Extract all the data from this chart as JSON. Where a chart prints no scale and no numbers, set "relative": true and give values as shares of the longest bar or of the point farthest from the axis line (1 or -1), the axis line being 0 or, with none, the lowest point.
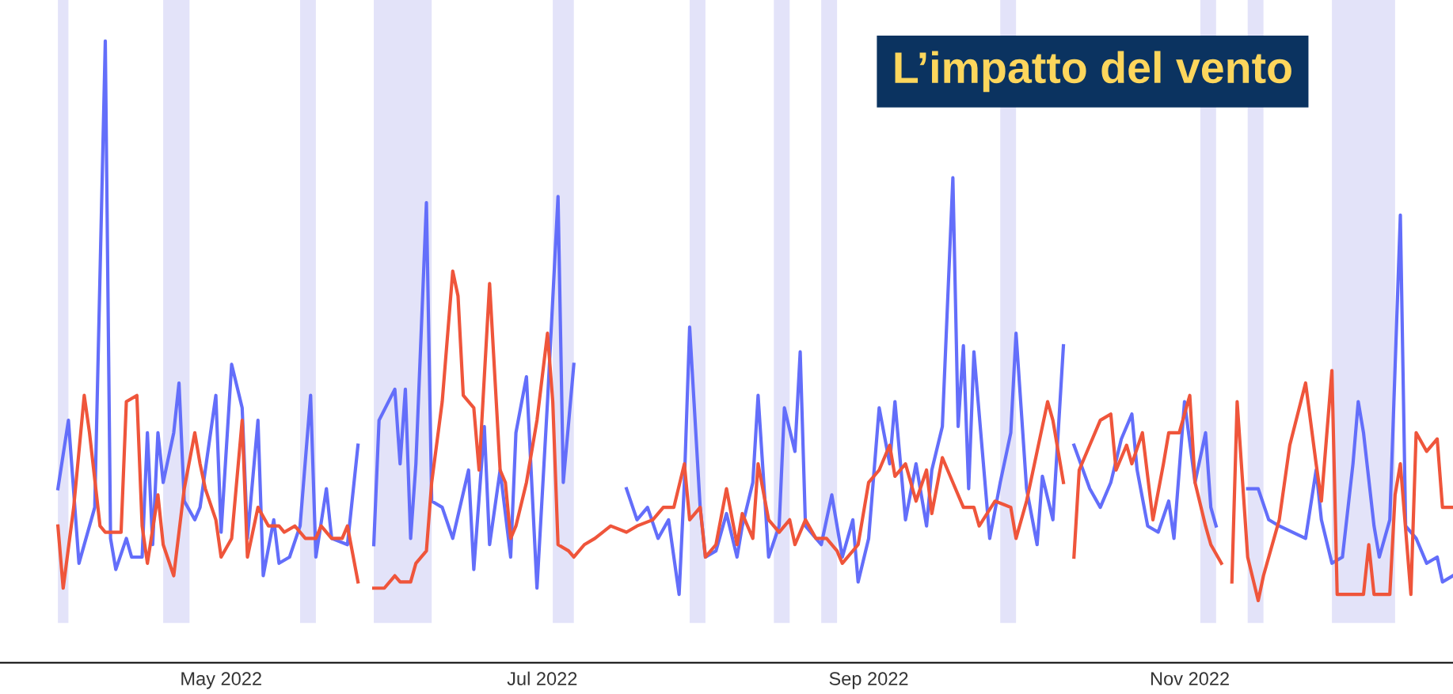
{
  "chart_data": {
    "type": "line",
    "title": "L’impatto del vento",
    "relative": true,
    "grid": false,
    "legend": false,
    "marker": "none",
    "line_style": "solid",
    "xlim": [
      "2022-03-20",
      "2022-12-21"
    ],
    "xticks": [
      {
        "value": "2022-05-01",
        "label": "May 2022"
      },
      {
        "value": "2022-07-01",
        "label": "Jul 2022"
      },
      {
        "value": "2022-09-01",
        "label": "Sep 2022"
      },
      {
        "value": "2022-11-01",
        "label": "Nov 2022"
      }
    ],
    "bands": [
      {
        "axis": "x",
        "from": "2022-03-31",
        "to": "2022-04-02",
        "color": "#e3e3f9"
      },
      {
        "axis": "x",
        "from": "2022-04-20",
        "to": "2022-04-25",
        "color": "#e3e3f9"
      },
      {
        "axis": "x",
        "from": "2022-05-16",
        "to": "2022-05-19",
        "color": "#e3e3f9"
      },
      {
        "axis": "x",
        "from": "2022-05-30",
        "to": "2022-06-10",
        "color": "#e3e3f9"
      },
      {
        "axis": "x",
        "from": "2022-07-03",
        "to": "2022-07-07",
        "color": "#e3e3f9"
      },
      {
        "axis": "x",
        "from": "2022-07-29",
        "to": "2022-08-01",
        "color": "#e3e3f9"
      },
      {
        "axis": "x",
        "from": "2022-08-14",
        "to": "2022-08-17",
        "color": "#e3e3f9"
      },
      {
        "axis": "x",
        "from": "2022-08-23",
        "to": "2022-08-26",
        "color": "#e3e3f9"
      },
      {
        "axis": "x",
        "from": "2022-09-26",
        "to": "2022-09-29",
        "color": "#e3e3f9"
      },
      {
        "axis": "x",
        "from": "2022-11-03",
        "to": "2022-11-06",
        "color": "#e3e3f9"
      },
      {
        "axis": "x",
        "from": "2022-11-12",
        "to": "2022-11-15",
        "color": "#e3e3f9"
      },
      {
        "axis": "x",
        "from": "2022-11-28",
        "to": "2022-12-10",
        "color": "#e3e3f9"
      }
    ],
    "series": [
      {
        "color": "#636efa",
        "x": [
          "2022-03-31",
          "2022-04-02",
          "2022-04-04",
          "2022-04-07",
          "2022-04-09",
          "2022-04-10",
          "2022-04-11",
          "2022-04-13",
          "2022-04-14",
          "2022-04-16",
          "2022-04-17",
          "2022-04-18",
          "2022-04-19",
          "2022-04-20",
          "2022-04-22",
          "2022-04-23",
          "2022-04-24",
          "2022-04-26",
          "2022-04-27",
          "2022-04-30",
          "2022-05-01",
          "2022-05-03",
          "2022-05-05",
          "2022-05-06",
          "2022-05-08",
          "2022-05-09",
          "2022-05-11",
          "2022-05-12",
          "2022-05-14",
          "2022-05-16",
          "2022-05-18",
          "2022-05-19",
          "2022-05-21",
          "2022-05-22",
          "2022-05-25",
          "2022-05-27",
          "2022-05-28",
          "2022-05-30",
          "2022-05-31",
          "2022-06-03",
          "2022-06-04",
          "2022-06-05",
          "2022-06-06",
          "2022-06-07",
          "2022-06-09",
          "2022-06-10",
          "2022-06-12",
          "2022-06-14",
          "2022-06-17",
          "2022-06-18",
          "2022-06-20",
          "2022-06-21",
          "2022-06-23",
          "2022-06-25",
          "2022-06-26",
          "2022-06-28",
          "2022-06-30",
          "2022-07-02",
          "2022-07-04",
          "2022-07-05",
          "2022-07-07",
          "2022-07-08",
          "2022-07-17",
          "2022-07-19",
          "2022-07-21",
          "2022-07-23",
          "2022-07-25",
          "2022-07-27",
          "2022-07-28",
          "2022-07-29",
          "2022-07-31",
          "2022-08-01",
          "2022-08-03",
          "2022-08-05",
          "2022-08-07",
          "2022-08-08",
          "2022-08-10",
          "2022-08-11",
          "2022-08-13",
          "2022-08-15",
          "2022-08-16",
          "2022-08-18",
          "2022-08-19",
          "2022-08-20",
          "2022-08-22",
          "2022-08-23",
          "2022-08-25",
          "2022-08-27",
          "2022-08-29",
          "2022-08-30",
          "2022-09-01",
          "2022-09-03",
          "2022-09-05",
          "2022-09-06",
          "2022-09-08",
          "2022-09-10",
          "2022-09-12",
          "2022-09-13",
          "2022-09-15",
          "2022-09-17",
          "2022-09-18",
          "2022-09-19",
          "2022-09-20",
          "2022-09-21",
          "2022-09-23",
          "2022-09-24",
          "2022-09-26",
          "2022-09-28",
          "2022-09-29",
          "2022-10-01",
          "2022-10-03",
          "2022-10-04",
          "2022-10-06",
          "2022-10-08",
          "2022-10-09",
          "2022-10-10",
          "2022-10-13",
          "2022-10-15",
          "2022-10-17",
          "2022-10-19",
          "2022-10-21",
          "2022-10-22",
          "2022-10-24",
          "2022-10-26",
          "2022-10-28",
          "2022-10-29",
          "2022-10-31",
          "2022-11-02",
          "2022-11-04",
          "2022-11-05",
          "2022-11-06",
          "2022-11-08",
          "2022-11-12",
          "2022-11-14",
          "2022-11-16",
          "2022-11-18",
          "2022-11-23",
          "2022-11-25",
          "2022-11-26",
          "2022-11-28",
          "2022-11-30",
          "2022-12-02",
          "2022-12-03",
          "2022-12-04",
          "2022-12-06",
          "2022-12-07",
          "2022-12-09",
          "2022-12-11",
          "2022-12-12",
          "2022-12-14",
          "2022-12-16",
          "2022-12-18",
          "2022-12-19",
          "2022-12-21"
        ],
        "values": [
          0.28,
          0.39,
          0.16,
          0.25,
          1.0,
          0.2,
          0.15,
          0.2,
          0.17,
          0.17,
          0.37,
          0.19,
          0.37,
          0.29,
          0.37,
          0.45,
          0.26,
          0.23,
          0.25,
          0.43,
          0.21,
          0.48,
          0.41,
          0.2,
          0.39,
          0.14,
          0.23,
          0.16,
          0.17,
          0.22,
          0.43,
          0.17,
          0.28,
          0.2,
          0.19,
          0.35,
          null,
          0.19,
          0.39,
          0.44,
          0.32,
          0.44,
          0.2,
          0.32,
          0.74,
          0.26,
          0.25,
          0.2,
          0.31,
          0.15,
          0.38,
          0.19,
          0.31,
          0.17,
          0.37,
          0.46,
          0.12,
          0.42,
          0.75,
          0.29,
          0.48,
          null,
          0.28,
          0.23,
          0.25,
          0.2,
          0.23,
          0.11,
          0.29,
          0.54,
          0.25,
          0.17,
          0.18,
          0.24,
          0.17,
          0.22,
          0.29,
          0.43,
          0.17,
          0.22,
          0.41,
          0.34,
          0.5,
          0.22,
          0.2,
          0.19,
          0.27,
          0.17,
          0.23,
          0.13,
          0.2,
          0.41,
          0.32,
          0.42,
          0.23,
          0.32,
          0.22,
          0.31,
          0.38,
          0.78,
          0.38,
          0.51,
          0.28,
          0.5,
          0.3,
          0.2,
          0.29,
          0.37,
          0.53,
          0.28,
          0.19,
          0.3,
          0.23,
          0.51,
          null,
          0.35,
          0.28,
          0.25,
          0.29,
          0.36,
          0.4,
          0.31,
          0.22,
          0.21,
          0.26,
          0.2,
          0.42,
          0.29,
          0.37,
          0.25,
          0.22,
          null,
          0.28,
          0.28,
          0.23,
          0.22,
          0.2,
          0.31,
          0.23,
          0.16,
          0.17,
          0.32,
          0.42,
          0.37,
          0.22,
          0.17,
          0.23,
          0.72,
          0.22,
          0.2,
          0.16,
          0.17,
          0.13,
          0.14
        ]
      },
      {
        "color": "#ef553b",
        "x": [
          "2022-03-31",
          "2022-04-01",
          "2022-04-03",
          "2022-04-05",
          "2022-04-06",
          "2022-04-08",
          "2022-04-09",
          "2022-04-12",
          "2022-04-13",
          "2022-04-15",
          "2022-04-16",
          "2022-04-17",
          "2022-04-19",
          "2022-04-20",
          "2022-04-22",
          "2022-04-24",
          "2022-04-26",
          "2022-04-27",
          "2022-04-28",
          "2022-04-30",
          "2022-05-01",
          "2022-05-03",
          "2022-05-05",
          "2022-05-06",
          "2022-05-08",
          "2022-05-10",
          "2022-05-12",
          "2022-05-13",
          "2022-05-15",
          "2022-05-17",
          "2022-05-19",
          "2022-05-20",
          "2022-05-22",
          "2022-05-24",
          "2022-05-25",
          "2022-05-27",
          "2022-05-28",
          "2022-05-30",
          "2022-06-01",
          "2022-06-03",
          "2022-06-04",
          "2022-06-06",
          "2022-06-07",
          "2022-06-09",
          "2022-06-10",
          "2022-06-12",
          "2022-06-14",
          "2022-06-15",
          "2022-06-16",
          "2022-06-18",
          "2022-06-19",
          "2022-06-21",
          "2022-06-23",
          "2022-06-24",
          "2022-06-25",
          "2022-06-26",
          "2022-06-28",
          "2022-06-30",
          "2022-07-02",
          "2022-07-03",
          "2022-07-04",
          "2022-07-06",
          "2022-07-07",
          "2022-07-09",
          "2022-07-11",
          "2022-07-14",
          "2022-07-17",
          "2022-07-19",
          "2022-07-22",
          "2022-07-24",
          "2022-07-26",
          "2022-07-28",
          "2022-07-29",
          "2022-07-31",
          "2022-08-01",
          "2022-08-03",
          "2022-08-05",
          "2022-08-07",
          "2022-08-08",
          "2022-08-10",
          "2022-08-11",
          "2022-08-13",
          "2022-08-15",
          "2022-08-17",
          "2022-08-18",
          "2022-08-20",
          "2022-08-22",
          "2022-08-24",
          "2022-08-26",
          "2022-08-27",
          "2022-08-30",
          "2022-09-01",
          "2022-09-03",
          "2022-09-05",
          "2022-09-06",
          "2022-09-08",
          "2022-09-10",
          "2022-09-12",
          "2022-09-13",
          "2022-09-15",
          "2022-09-17",
          "2022-09-19",
          "2022-09-21",
          "2022-09-22",
          "2022-09-25",
          "2022-09-28",
          "2022-09-29",
          "2022-10-01",
          "2022-10-03",
          "2022-10-05",
          "2022-10-06",
          "2022-10-08",
          "2022-10-09",
          "2022-10-10",
          "2022-10-11",
          "2022-10-13",
          "2022-10-15",
          "2022-10-17",
          "2022-10-18",
          "2022-10-20",
          "2022-10-21",
          "2022-10-23",
          "2022-10-25",
          "2022-10-27",
          "2022-10-28",
          "2022-10-30",
          "2022-11-01",
          "2022-11-02",
          "2022-11-04",
          "2022-11-05",
          "2022-11-07",
          "2022-11-08",
          "2022-11-09",
          "2022-11-10",
          "2022-11-12",
          "2022-11-14",
          "2022-11-15",
          "2022-11-18",
          "2022-11-20",
          "2022-11-23",
          "2022-11-25",
          "2022-11-26",
          "2022-11-28",
          "2022-11-29",
          "2022-12-04",
          "2022-12-05",
          "2022-12-06",
          "2022-12-09",
          "2022-12-10",
          "2022-12-11",
          "2022-12-13",
          "2022-12-14",
          "2022-12-16",
          "2022-12-18",
          "2022-12-19",
          "2022-12-21"
        ],
        "values": [
          0.22,
          0.12,
          0.25,
          0.43,
          0.37,
          0.22,
          0.21,
          0.21,
          0.42,
          0.43,
          0.22,
          0.16,
          0.27,
          0.19,
          0.14,
          0.28,
          0.37,
          0.32,
          0.28,
          0.23,
          0.17,
          0.2,
          0.39,
          0.17,
          0.25,
          0.22,
          0.22,
          0.21,
          0.22,
          0.2,
          0.2,
          0.22,
          0.2,
          0.2,
          0.22,
          0.13,
          null,
          0.12,
          0.12,
          0.14,
          0.13,
          0.13,
          0.16,
          0.18,
          0.29,
          0.42,
          0.63,
          0.59,
          0.43,
          0.41,
          0.31,
          0.61,
          0.31,
          0.29,
          0.2,
          0.22,
          0.29,
          0.39,
          0.53,
          0.42,
          0.19,
          0.18,
          0.17,
          0.19,
          0.2,
          0.22,
          0.21,
          0.22,
          0.23,
          0.25,
          0.25,
          0.32,
          0.23,
          0.25,
          0.17,
          0.19,
          0.28,
          0.19,
          0.24,
          0.2,
          0.32,
          0.23,
          0.21,
          0.23,
          0.19,
          0.23,
          0.2,
          0.2,
          0.18,
          0.16,
          0.19,
          0.29,
          0.31,
          0.35,
          0.3,
          0.32,
          0.26,
          0.31,
          0.24,
          0.33,
          0.29,
          0.25,
          0.25,
          0.22,
          0.26,
          0.25,
          0.2,
          0.26,
          0.34,
          0.42,
          0.39,
          0.29,
          null,
          0.17,
          0.31,
          0.35,
          0.39,
          0.4,
          0.31,
          0.35,
          0.32,
          0.37,
          0.23,
          0.32,
          0.37,
          0.37,
          0.43,
          0.29,
          0.22,
          0.19,
          0.16,
          null,
          0.13,
          0.42,
          0.17,
          0.1,
          0.14,
          0.23,
          0.35,
          0.45,
          0.32,
          0.26,
          0.47,
          0.11,
          0.11,
          0.19,
          0.11,
          0.11,
          0.27,
          0.32,
          0.11,
          0.37,
          0.34,
          0.36,
          0.25,
          0.25
        ]
      }
    ]
  }
}
